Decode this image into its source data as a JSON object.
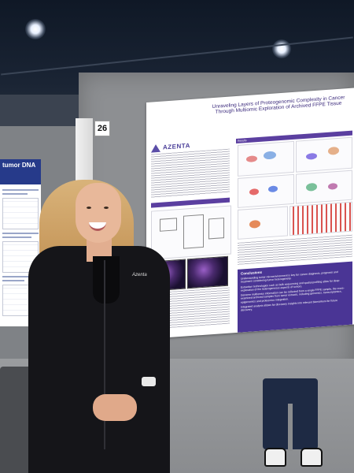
{
  "booth": {
    "number": "26"
  },
  "left_poster": {
    "title": "tumor DNA"
  },
  "main_poster": {
    "title": "Unraveling Layers of Proteogenomic Complexity in Cancer Through Multiomic Exploration of Archived FFPE Tissue",
    "logo_text": "AZENTA",
    "logo_sub": "LIFE SCIENCES",
    "section_headers": [
      "Results",
      "Conclusions"
    ],
    "conclusions": [
      "Understanding tumor microenvironment is key for cancer diagnosis, prognosis and treatment considering tumor heterogeneity.",
      "Extraction technologies such as bulk sequencing and spatial profiling allow for deep exploration of the heterogeneous aspects of tumors.",
      "Genome multiomics information can be collected from a single FFPE sample, the cross-examined archived samples from tumor extracts, including genomics, transcriptomics, epigenomics and proteomics integration.",
      "Integrated analysis allows for discovery insights into relevant biomarkers for future discovery."
    ]
  },
  "person": {
    "jacket_logo": "Azenta"
  },
  "colors": {
    "poster_purple": "#5b3fa0",
    "left_poster_blue": "#263a8a",
    "jacket": "#151519"
  }
}
